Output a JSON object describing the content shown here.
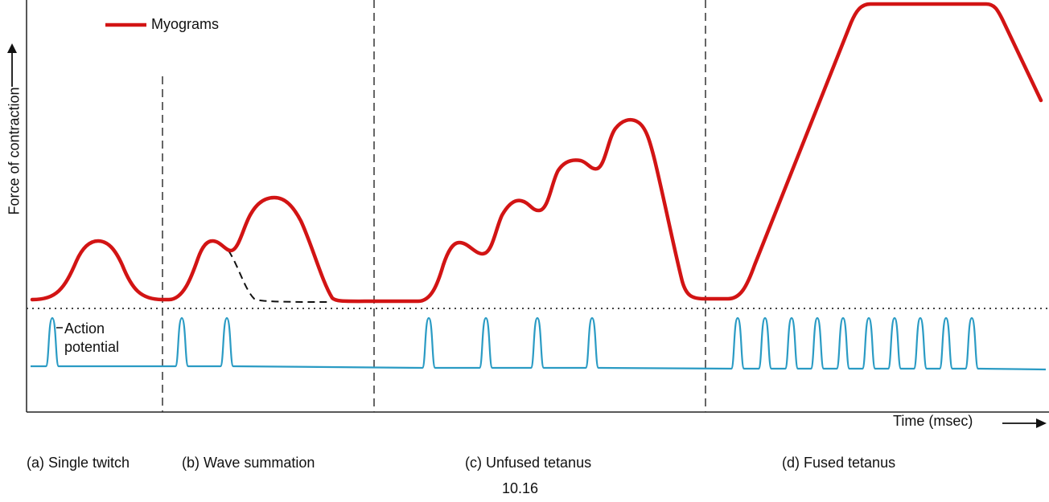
{
  "legend": {
    "label": "Myograms",
    "color": "#d21414"
  },
  "y_axis": {
    "label": "Force of contraction"
  },
  "x_axis": {
    "label": "Time (msec)"
  },
  "action_potential": {
    "label_line1": "Action",
    "label_line2": "potential",
    "color": "#2a9bc4"
  },
  "phases": {
    "a": "(a) Single twitch",
    "b": "(b) Wave summation",
    "c": "(c) Unfused tetanus",
    "d": "(d) Fused tetanus"
  },
  "figure_number": "10.16"
}
